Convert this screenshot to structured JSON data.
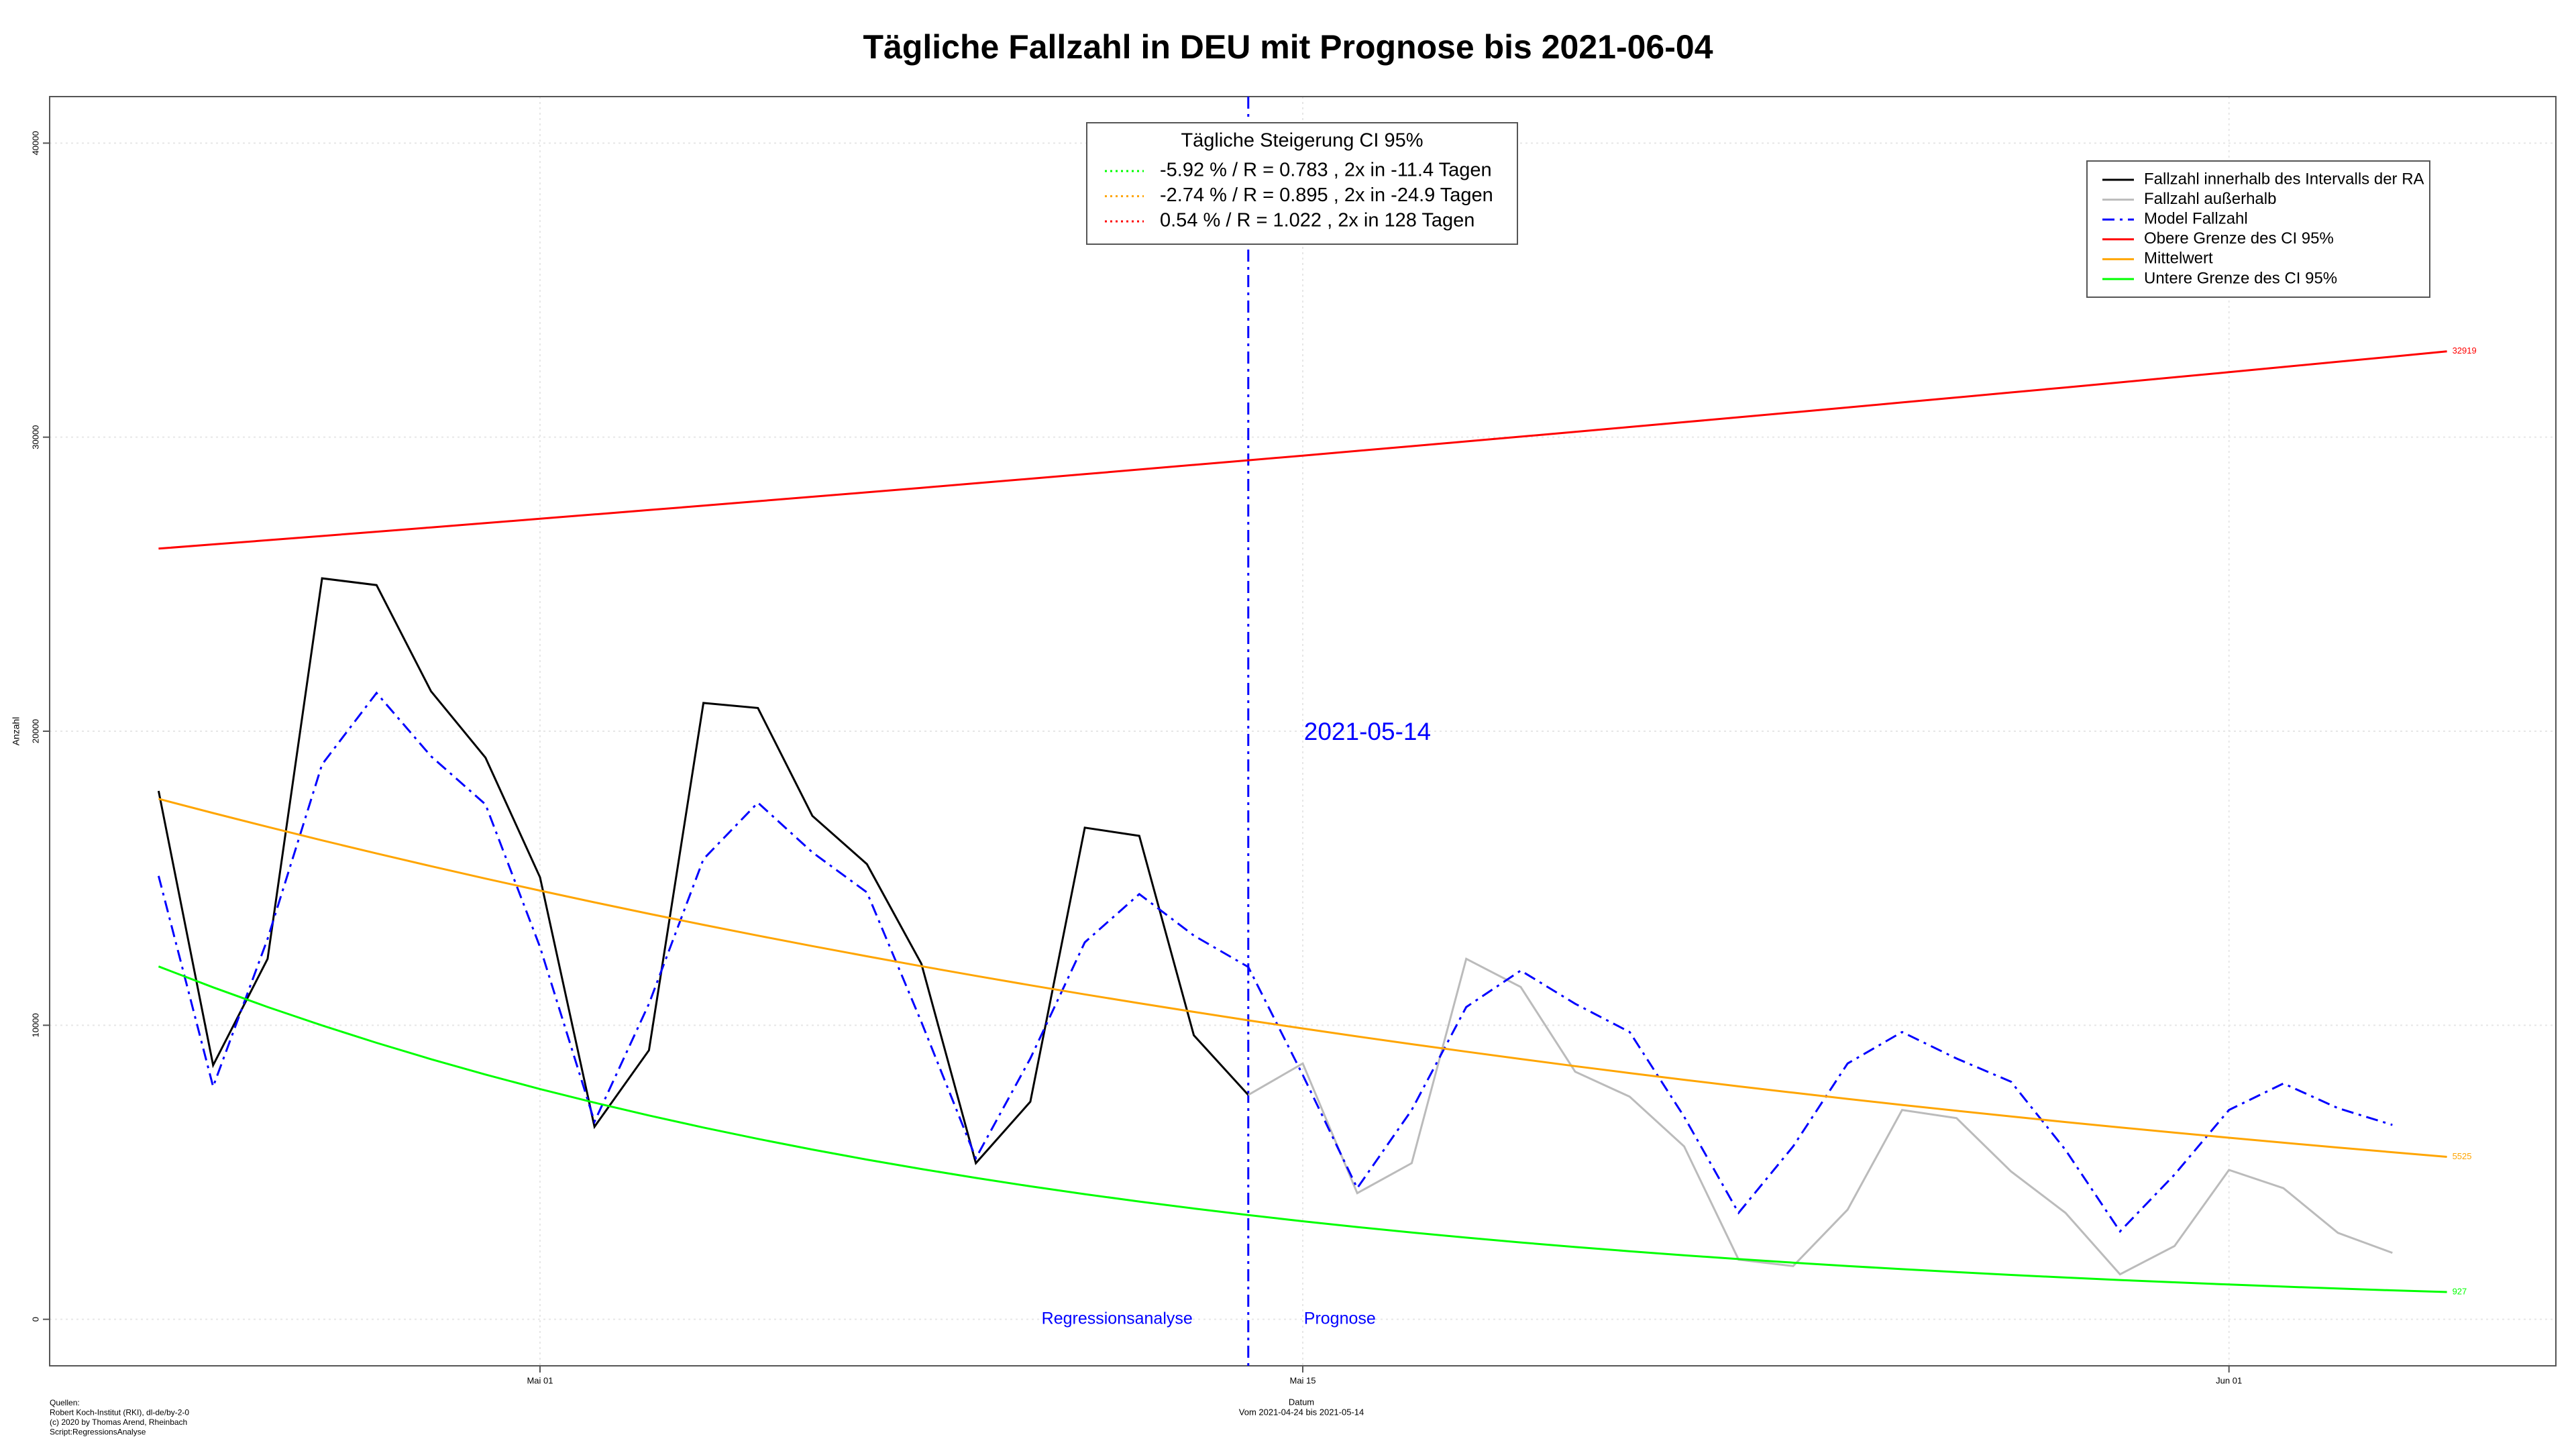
{
  "chart_data": {
    "type": "line",
    "title": "Tägliche Fallzahl in DEU mit Prognose bis 2021-06-04",
    "x_label": "Datum",
    "subtitle": "Vom 2021-04-24 bis 2021-05-14",
    "y_label": "Anzahl",
    "sources": [
      "Quellen:",
      "Robert Koch-Institut (RKI), dl-de/by-2-0",
      "(c) 2020 by Thomas Arend, Rheinbach",
      "Script:RegressionsAnalyse"
    ],
    "vline": "2021-05-14",
    "vline_color": "#0000ff",
    "left_annotation": "Regressionsanalyse",
    "right_annotation": "Prognose",
    "annotation_color": "#0000ff",
    "x": [
      "2021-04-24",
      "2021-04-25",
      "2021-04-26",
      "2021-04-27",
      "2021-04-28",
      "2021-04-29",
      "2021-04-30",
      "2021-05-01",
      "2021-05-02",
      "2021-05-03",
      "2021-05-04",
      "2021-05-05",
      "2021-05-06",
      "2021-05-07",
      "2021-05-08",
      "2021-05-09",
      "2021-05-10",
      "2021-05-11",
      "2021-05-12",
      "2021-05-13",
      "2021-05-14",
      "2021-05-15",
      "2021-05-16",
      "2021-05-17",
      "2021-05-18",
      "2021-05-19",
      "2021-05-20",
      "2021-05-21",
      "2021-05-22",
      "2021-05-23",
      "2021-05-24",
      "2021-05-25",
      "2021-05-26",
      "2021-05-27",
      "2021-05-28",
      "2021-05-29",
      "2021-05-30",
      "2021-05-31",
      "2021-06-01",
      "2021-06-02",
      "2021-06-03",
      "2021-06-04",
      "2021-06-05"
    ],
    "xlim": [
      "2021-04-22",
      "2021-06-07"
    ],
    "xticks": [
      {
        "value": "2021-05-01",
        "label": "Mai 01"
      },
      {
        "value": "2021-05-15",
        "label": "Mai 15"
      },
      {
        "value": "2021-06-01",
        "label": "Jun 01"
      }
    ],
    "ylim": [
      -1582,
      41582
    ],
    "yticks": [
      0,
      10000,
      20000,
      30000,
      40000
    ],
    "grid": true,
    "legend_position": "top-right",
    "series": [
      {
        "name": "Fallzahl innerhalb des Intervalls der RA",
        "color": "#000000",
        "dash": "solid",
        "values": [
          17970,
          8640,
          12260,
          25200,
          24970,
          21360,
          19100,
          15030,
          6550,
          9150,
          20960,
          20790,
          17120,
          15480,
          12090,
          5310,
          7400,
          16720,
          16440,
          9660,
          7630,
          null,
          null,
          null,
          null,
          null,
          null,
          null,
          null,
          null,
          null,
          null,
          null,
          null,
          null,
          null,
          null,
          null,
          null,
          null,
          null,
          null,
          null
        ]
      },
      {
        "name": "Fallzahl außerhalb",
        "color": "#bbbbbb",
        "dash": "solid",
        "values": [
          null,
          null,
          null,
          null,
          null,
          null,
          null,
          null,
          null,
          null,
          null,
          null,
          null,
          null,
          null,
          null,
          null,
          null,
          null,
          null,
          7630,
          8700,
          4290,
          5310,
          12260,
          11300,
          8420,
          7570,
          5880,
          2030,
          1810,
          3730,
          7120,
          6840,
          5030,
          3620,
          1530,
          2490,
          5080,
          4460,
          2940,
          2260,
          null
        ]
      },
      {
        "name": "Model Fallzahl",
        "color": "#0000ff",
        "dash": "dot-dash",
        "values": [
          15080,
          7910,
          12940,
          18870,
          21300,
          19150,
          17510,
          12660,
          6720,
          10730,
          15650,
          17570,
          15880,
          14520,
          10110,
          5480,
          8870,
          12820,
          14460,
          13050,
          11980,
          8310,
          4460,
          7120,
          10620,
          11860,
          10730,
          9770,
          6890,
          3620,
          5880,
          8700,
          9770,
          8870,
          8080,
          5760,
          2990,
          4920,
          7120,
          8020,
          7180,
          6610,
          null
        ]
      },
      {
        "name": "Obere Grenze des CI 95%",
        "color": "#ff0000",
        "dash": "solid",
        "end_label": "32919",
        "values": [
          26210,
          26353,
          26496,
          26640,
          26785,
          26931,
          27077,
          27225,
          27373,
          27522,
          27671,
          27822,
          27973,
          28125,
          28278,
          28432,
          28587,
          28742,
          28899,
          29056,
          29214,
          29373,
          29533,
          29694,
          29855,
          30018,
          30181,
          30345,
          30510,
          30676,
          30843,
          31011,
          31180,
          31349,
          31520,
          31691,
          31864,
          32037,
          32211,
          32387,
          32563,
          32740,
          32919
        ]
      },
      {
        "name": "Mittelwert",
        "color": "#ffa500",
        "dash": "solid",
        "end_label": "5525",
        "values": [
          17700,
          17216,
          16746,
          16288,
          15843,
          15410,
          14988,
          14579,
          14180,
          13792,
          13415,
          13049,
          12692,
          12345,
          12008,
          11679,
          11360,
          11050,
          10748,
          10454,
          10168,
          9890,
          9620,
          9357,
          9101,
          8852,
          8610,
          8375,
          8146,
          7923,
          7707,
          7496,
          7291,
          7092,
          6898,
          6709,
          6526,
          6347,
          6174,
          6005,
          5841,
          5681,
          5525
        ]
      },
      {
        "name": "Untere Grenze des CI 95%",
        "color": "#00ff00",
        "dash": "solid",
        "end_label": "927",
        "values": [
          12000,
          11290,
          10622,
          9994,
          9403,
          8847,
          8324,
          7831,
          7368,
          6932,
          6522,
          6137,
          5774,
          5432,
          5111,
          4809,
          4524,
          4257,
          4005,
          3768,
          3545,
          3335,
          3138,
          2952,
          2778,
          2614,
          2459,
          2314,
          2177,
          2048,
          1927,
          1813,
          1706,
          1605,
          1510,
          1421,
          1337,
          1258,
          1183,
          1113,
          1047,
          985,
          927
        ]
      }
    ],
    "growth_legend": {
      "title": "Tägliche Steigerung CI  95%",
      "entries": [
        {
          "text": "-5.92 % / R = 0.783 , 2x in -11.4 Tagen",
          "color": "#00ff00"
        },
        {
          "text": "-2.74 % / R = 0.895 , 2x in -24.9 Tagen",
          "color": "#ffa500"
        },
        {
          "text": "0.54 % / R = 1.022 , 2x in 128 Tagen",
          "color": "#ff0000"
        }
      ]
    }
  }
}
